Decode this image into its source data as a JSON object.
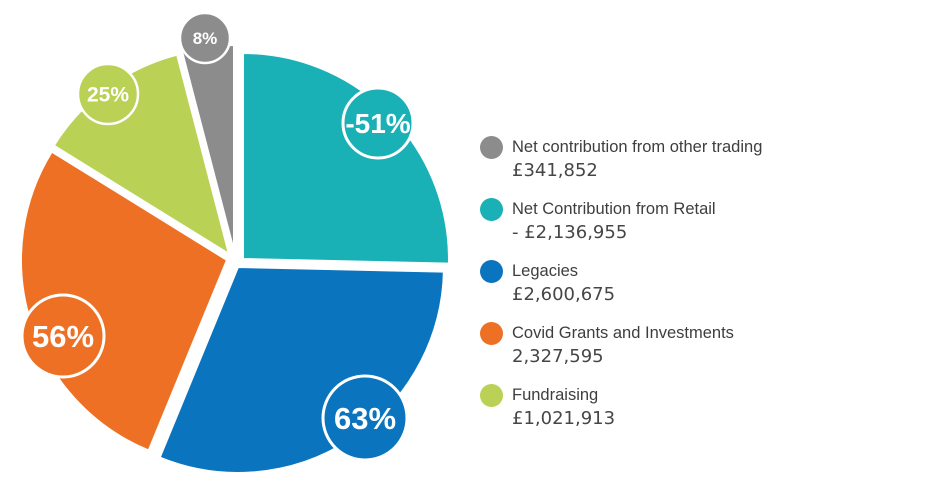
{
  "chart_data": {
    "type": "pie",
    "title": "",
    "legend_position": "right",
    "start_angle_deg": 0,
    "direction": "clockwise",
    "slices": [
      {
        "id": "other-trading",
        "label": "Net contribution from other trading",
        "amount_label": "£341,852",
        "amount": 341852,
        "badge": "8%",
        "color": "#8C8C8C",
        "share_pct": 4.1
      },
      {
        "id": "retail",
        "label": "Net Contribution from Retail",
        "amount_label": "- £2,136,955",
        "amount": -2136955,
        "badge": "-51%",
        "color": "#19B0B6",
        "share_pct": 25.4
      },
      {
        "id": "legacies",
        "label": "Legacies",
        "amount_label": "£2,600,675",
        "amount": 2600675,
        "badge": "63%",
        "color": "#0A75BE",
        "share_pct": 30.9
      },
      {
        "id": "covid-grants",
        "label": "Covid Grants and Investments",
        "amount_label": "2,327,595",
        "amount": 2327595,
        "badge": "56%",
        "color": "#EE7024",
        "share_pct": 27.6
      },
      {
        "id": "fundraising",
        "label": "Fundraising",
        "amount_label": "£1,021,913",
        "amount": 1021913,
        "badge": "25%",
        "color": "#B9D154",
        "share_pct": 12.1
      }
    ],
    "pie_order": [
      "retail",
      "legacies",
      "covid-grants",
      "fundraising",
      "other-trading"
    ]
  },
  "colors": {
    "background": "#FFFFFF",
    "legend_label_text": "#3E3E3D",
    "legend_value_text": "#464645",
    "badge_text": "#FFFFFF",
    "slice_gap": "#FFFFFF"
  }
}
